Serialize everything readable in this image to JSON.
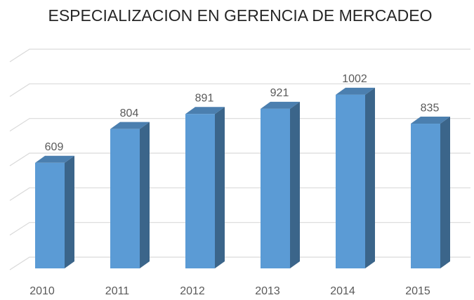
{
  "chart_data": {
    "type": "bar3d",
    "title": "ESPECIALIZACION EN GERENCIA DE MERCADEO",
    "categories": [
      "2010",
      "2011",
      "2012",
      "2013",
      "2014",
      "2015"
    ],
    "values": [
      609,
      804,
      891,
      921,
      1002,
      835
    ],
    "color": "#5b9bd5",
    "ylim": [
      0,
      1200
    ],
    "yticks": [
      0,
      200,
      400,
      600,
      800,
      1000,
      1200
    ],
    "grid": true
  }
}
